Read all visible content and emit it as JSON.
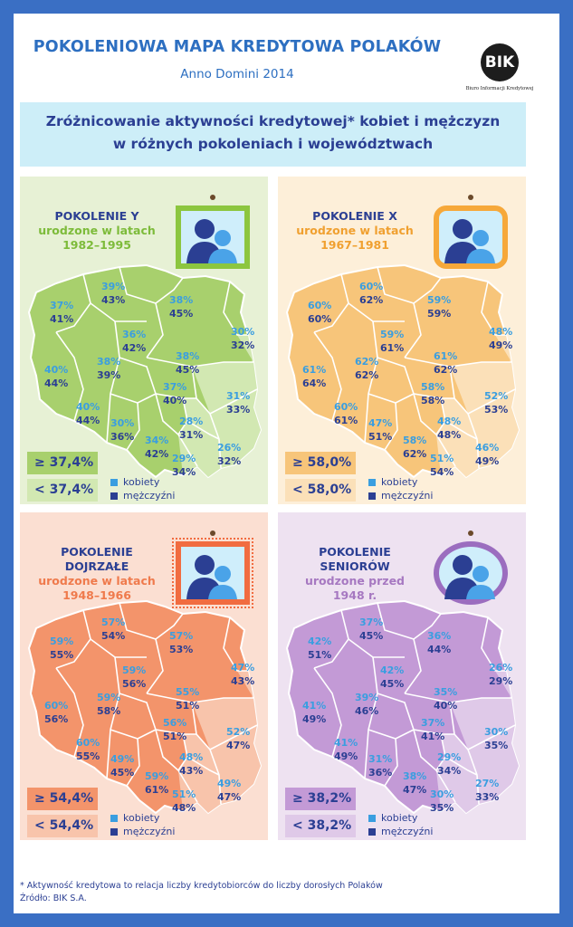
{
  "header": {
    "title": "POKOLENIOWA MAPA KREDYTOWA POLAKÓW",
    "subtitle": "Anno Domini 2014",
    "logo_text": "BIK",
    "logo_caption": "Biuro Informacji Kredytowej"
  },
  "banner": {
    "line1": "Zróżnicowanie aktywności kredytowej* kobiet i mężczyzn",
    "line2": "w różnych pokoleniach i województwach"
  },
  "legend": {
    "women": "kobiety",
    "men": "mężczyźni",
    "women_color": "#3a9ee0",
    "men_color": "#2b3f93"
  },
  "panels": [
    {
      "id": "y",
      "title": [
        "POKOLENIE Y"
      ],
      "sub": [
        "urodzone w latach",
        "1982–1995"
      ],
      "sub_color": "#7dbb3a",
      "high_label": "≥ 37,4%",
      "low_label": "< 37,4%",
      "high_color": "#a8d06d",
      "low_color": "#d2e8b2",
      "frame_color": "#8cc63f",
      "values": [
        [
          "37%",
          "41%"
        ],
        [
          "39%",
          "43%"
        ],
        [
          "38%",
          "45%"
        ],
        [
          "30%",
          "32%"
        ],
        [
          "36%",
          "42%"
        ],
        [
          "38%",
          "45%"
        ],
        [
          "40%",
          "44%"
        ],
        [
          "38%",
          "39%"
        ],
        [
          "37%",
          "40%"
        ],
        [
          "31%",
          "33%"
        ],
        [
          "40%",
          "44%"
        ],
        [
          "30%",
          "36%"
        ],
        [
          "34%",
          "42%"
        ],
        [
          "28%",
          "31%"
        ],
        [
          "29%",
          "34%"
        ],
        [
          "26%",
          "32%"
        ]
      ]
    },
    {
      "id": "x",
      "title": [
        "POKOLENIE X"
      ],
      "sub": [
        "urodzone w latach",
        "1967–1981"
      ],
      "sub_color": "#f0a030",
      "high_label": "≥ 58,0%",
      "low_label": "< 58,0%",
      "high_color": "#f7c57a",
      "low_color": "#fbe0b8",
      "frame_color": "#f6a83a",
      "values": [
        [
          "60%",
          "60%"
        ],
        [
          "60%",
          "62%"
        ],
        [
          "59%",
          "59%"
        ],
        [
          "48%",
          "49%"
        ],
        [
          "59%",
          "61%"
        ],
        [
          "61%",
          "62%"
        ],
        [
          "61%",
          "64%"
        ],
        [
          "62%",
          "62%"
        ],
        [
          "58%",
          "58%"
        ],
        [
          "52%",
          "53%"
        ],
        [
          "60%",
          "61%"
        ],
        [
          "47%",
          "51%"
        ],
        [
          "58%",
          "62%"
        ],
        [
          "48%",
          "48%"
        ],
        [
          "51%",
          "54%"
        ],
        [
          "46%",
          "49%"
        ]
      ]
    },
    {
      "id": "d",
      "title": [
        "POKOLENIE",
        "DOJRZAŁE"
      ],
      "sub": [
        "urodzone w latach",
        "1948–1966"
      ],
      "sub_color": "#ef7a4c",
      "high_label": "≥ 54,4%",
      "low_label": "< 54,4%",
      "high_color": "#f3946b",
      "low_color": "#f8c4ab",
      "frame_color": "#f16c40",
      "values": [
        [
          "59%",
          "55%"
        ],
        [
          "57%",
          "54%"
        ],
        [
          "57%",
          "53%"
        ],
        [
          "47%",
          "43%"
        ],
        [
          "59%",
          "56%"
        ],
        [
          "55%",
          "51%"
        ],
        [
          "60%",
          "56%"
        ],
        [
          "59%",
          "58%"
        ],
        [
          "56%",
          "51%"
        ],
        [
          "52%",
          "47%"
        ],
        [
          "60%",
          "55%"
        ],
        [
          "49%",
          "45%"
        ],
        [
          "59%",
          "61%"
        ],
        [
          "48%",
          "43%"
        ],
        [
          "51%",
          "48%"
        ],
        [
          "49%",
          "47%"
        ]
      ]
    },
    {
      "id": "s",
      "title": [
        "POKOLENIE",
        "SENIORÓW"
      ],
      "sub": [
        "urodzone przed",
        "1948 r."
      ],
      "sub_color": "#a678c1",
      "high_label": "≥ 38,2%",
      "low_label": "< 38,2%",
      "high_color": "#c39ad6",
      "low_color": "#dfc9e8",
      "frame_color": "#9b6dbf",
      "values": [
        [
          "42%",
          "51%"
        ],
        [
          "37%",
          "45%"
        ],
        [
          "36%",
          "44%"
        ],
        [
          "26%",
          "29%"
        ],
        [
          "42%",
          "45%"
        ],
        [
          "35%",
          "40%"
        ],
        [
          "41%",
          "49%"
        ],
        [
          "39%",
          "46%"
        ],
        [
          "37%",
          "41%"
        ],
        [
          "30%",
          "35%"
        ],
        [
          "41%",
          "49%"
        ],
        [
          "31%",
          "36%"
        ],
        [
          "38%",
          "47%"
        ],
        [
          "29%",
          "34%"
        ],
        [
          "30%",
          "35%"
        ],
        [
          "27%",
          "33%"
        ]
      ]
    }
  ],
  "footnote": "* Aktywność kredytowa to relacja liczby kredytobiorców do liczby dorosłych Polaków",
  "source": "Źródło: BIK S.A."
}
